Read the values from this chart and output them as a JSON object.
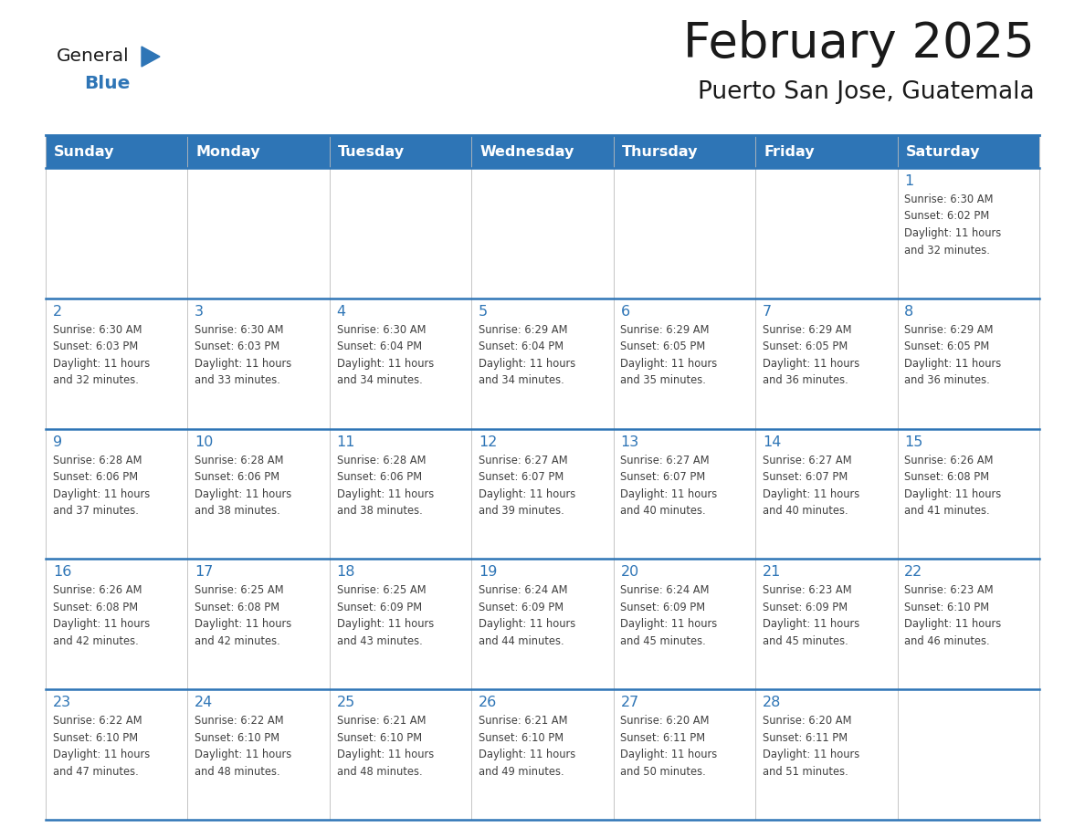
{
  "title": "February 2025",
  "subtitle": "Puerto San Jose, Guatemala",
  "days_of_week": [
    "Sunday",
    "Monday",
    "Tuesday",
    "Wednesday",
    "Thursday",
    "Friday",
    "Saturday"
  ],
  "header_bg": "#2E75B6",
  "header_text": "#FFFFFF",
  "cell_bg": "#FFFFFF",
  "divider_color": "#2E75B6",
  "day_num_color": "#2E75B6",
  "cell_text_color": "#404040",
  "title_color": "#1A1A1A",
  "subtitle_color": "#1A1A1A",
  "border_color": "#AAAAAA",
  "calendar": [
    [
      {
        "day": 0,
        "text": ""
      },
      {
        "day": 0,
        "text": ""
      },
      {
        "day": 0,
        "text": ""
      },
      {
        "day": 0,
        "text": ""
      },
      {
        "day": 0,
        "text": ""
      },
      {
        "day": 0,
        "text": ""
      },
      {
        "day": 1,
        "text": "Sunrise: 6:30 AM\nSunset: 6:02 PM\nDaylight: 11 hours\nand 32 minutes."
      }
    ],
    [
      {
        "day": 2,
        "text": "Sunrise: 6:30 AM\nSunset: 6:03 PM\nDaylight: 11 hours\nand 32 minutes."
      },
      {
        "day": 3,
        "text": "Sunrise: 6:30 AM\nSunset: 6:03 PM\nDaylight: 11 hours\nand 33 minutes."
      },
      {
        "day": 4,
        "text": "Sunrise: 6:30 AM\nSunset: 6:04 PM\nDaylight: 11 hours\nand 34 minutes."
      },
      {
        "day": 5,
        "text": "Sunrise: 6:29 AM\nSunset: 6:04 PM\nDaylight: 11 hours\nand 34 minutes."
      },
      {
        "day": 6,
        "text": "Sunrise: 6:29 AM\nSunset: 6:05 PM\nDaylight: 11 hours\nand 35 minutes."
      },
      {
        "day": 7,
        "text": "Sunrise: 6:29 AM\nSunset: 6:05 PM\nDaylight: 11 hours\nand 36 minutes."
      },
      {
        "day": 8,
        "text": "Sunrise: 6:29 AM\nSunset: 6:05 PM\nDaylight: 11 hours\nand 36 minutes."
      }
    ],
    [
      {
        "day": 9,
        "text": "Sunrise: 6:28 AM\nSunset: 6:06 PM\nDaylight: 11 hours\nand 37 minutes."
      },
      {
        "day": 10,
        "text": "Sunrise: 6:28 AM\nSunset: 6:06 PM\nDaylight: 11 hours\nand 38 minutes."
      },
      {
        "day": 11,
        "text": "Sunrise: 6:28 AM\nSunset: 6:06 PM\nDaylight: 11 hours\nand 38 minutes."
      },
      {
        "day": 12,
        "text": "Sunrise: 6:27 AM\nSunset: 6:07 PM\nDaylight: 11 hours\nand 39 minutes."
      },
      {
        "day": 13,
        "text": "Sunrise: 6:27 AM\nSunset: 6:07 PM\nDaylight: 11 hours\nand 40 minutes."
      },
      {
        "day": 14,
        "text": "Sunrise: 6:27 AM\nSunset: 6:07 PM\nDaylight: 11 hours\nand 40 minutes."
      },
      {
        "day": 15,
        "text": "Sunrise: 6:26 AM\nSunset: 6:08 PM\nDaylight: 11 hours\nand 41 minutes."
      }
    ],
    [
      {
        "day": 16,
        "text": "Sunrise: 6:26 AM\nSunset: 6:08 PM\nDaylight: 11 hours\nand 42 minutes."
      },
      {
        "day": 17,
        "text": "Sunrise: 6:25 AM\nSunset: 6:08 PM\nDaylight: 11 hours\nand 42 minutes."
      },
      {
        "day": 18,
        "text": "Sunrise: 6:25 AM\nSunset: 6:09 PM\nDaylight: 11 hours\nand 43 minutes."
      },
      {
        "day": 19,
        "text": "Sunrise: 6:24 AM\nSunset: 6:09 PM\nDaylight: 11 hours\nand 44 minutes."
      },
      {
        "day": 20,
        "text": "Sunrise: 6:24 AM\nSunset: 6:09 PM\nDaylight: 11 hours\nand 45 minutes."
      },
      {
        "day": 21,
        "text": "Sunrise: 6:23 AM\nSunset: 6:09 PM\nDaylight: 11 hours\nand 45 minutes."
      },
      {
        "day": 22,
        "text": "Sunrise: 6:23 AM\nSunset: 6:10 PM\nDaylight: 11 hours\nand 46 minutes."
      }
    ],
    [
      {
        "day": 23,
        "text": "Sunrise: 6:22 AM\nSunset: 6:10 PM\nDaylight: 11 hours\nand 47 minutes."
      },
      {
        "day": 24,
        "text": "Sunrise: 6:22 AM\nSunset: 6:10 PM\nDaylight: 11 hours\nand 48 minutes."
      },
      {
        "day": 25,
        "text": "Sunrise: 6:21 AM\nSunset: 6:10 PM\nDaylight: 11 hours\nand 48 minutes."
      },
      {
        "day": 26,
        "text": "Sunrise: 6:21 AM\nSunset: 6:10 PM\nDaylight: 11 hours\nand 49 minutes."
      },
      {
        "day": 27,
        "text": "Sunrise: 6:20 AM\nSunset: 6:11 PM\nDaylight: 11 hours\nand 50 minutes."
      },
      {
        "day": 28,
        "text": "Sunrise: 6:20 AM\nSunset: 6:11 PM\nDaylight: 11 hours\nand 51 minutes."
      },
      {
        "day": 0,
        "text": ""
      }
    ]
  ],
  "logo_general_color": "#1A1A1A",
  "logo_blue_color": "#2E75B6",
  "logo_triangle_color": "#2E75B6"
}
